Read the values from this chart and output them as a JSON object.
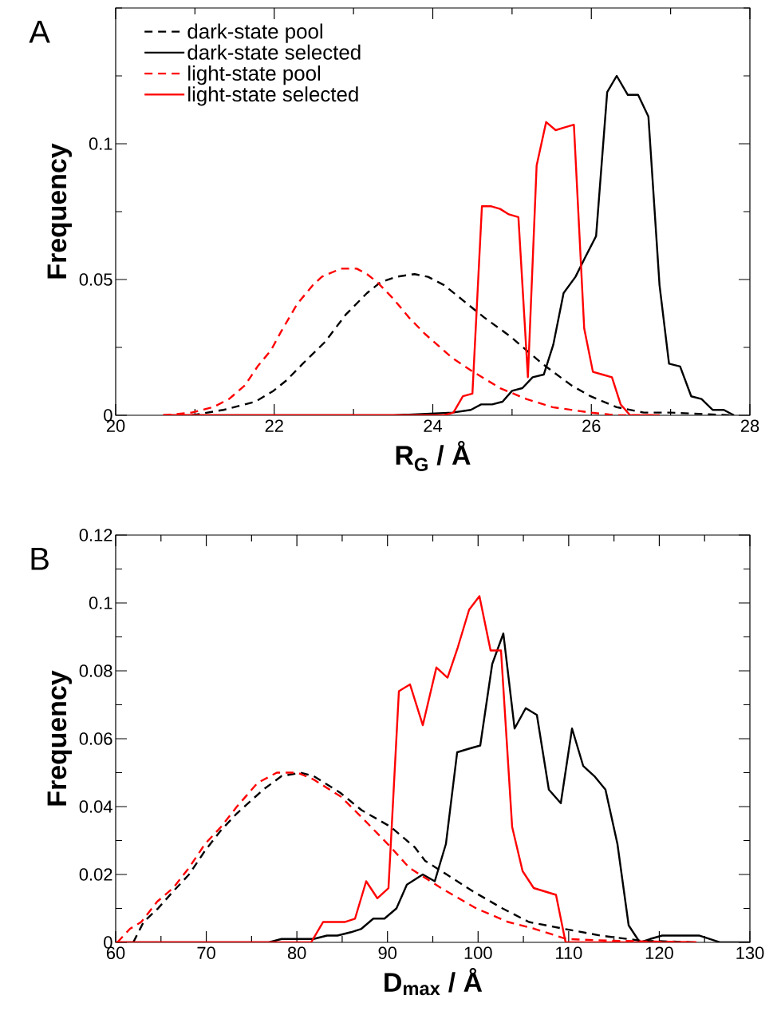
{
  "chart_data": [
    {
      "type": "line",
      "title": "A",
      "xlabel": "**R$_{G}$ / Å**",
      "ylabel": "**Frequency**",
      "xlim": [
        20,
        28
      ],
      "xticks": [
        20,
        {
          "value": 21,
          "label": null
        },
        22,
        {
          "value": 23,
          "label": null
        },
        24,
        {
          "value": 25,
          "label": null
        },
        26,
        {
          "value": 27,
          "label": null
        },
        28
      ],
      "ylim": [
        0,
        0.15
      ],
      "yticks": [
        0,
        {
          "value": 0.025,
          "label": null
        },
        0.05,
        {
          "value": 0.075,
          "label": null
        },
        0.1,
        {
          "value": 0.125,
          "label": null
        },
        {
          "value": 0.15,
          "label": null
        }
      ],
      "legend": "top left",
      "series": [
        {
          "name": "dark-state pool",
          "color": "#000000",
          "line_style": "dashed",
          "x": [
            20.96,
            21.36,
            21.76,
            21.99,
            22.16,
            22.36,
            22.64,
            22.9,
            23.17,
            23.34,
            23.54,
            23.77,
            23.94,
            24.14,
            24.31,
            24.65,
            24.98,
            25.38,
            25.75,
            25.99,
            26.32,
            26.66,
            26.99,
            27.77
          ],
          "values": [
            0,
            0.002,
            0.005,
            0.009,
            0.013,
            0.019,
            0.027,
            0.037,
            0.045,
            0.049,
            0.051,
            0.052,
            0.051,
            0.048,
            0.044,
            0.036,
            0.029,
            0.019,
            0.011,
            0.007,
            0.003,
            0.001,
            0.001,
            0
          ]
        },
        {
          "name": "dark-state selected",
          "color": "#000000",
          "line_style": "solid",
          "x": [
            20.6,
            23.5,
            23.97,
            24.25,
            24.48,
            24.61,
            24.75,
            24.88,
            25.0,
            25.13,
            25.26,
            25.4,
            25.52,
            25.65,
            25.8,
            25.92,
            26.06,
            26.2,
            26.32,
            26.46,
            26.59,
            26.72,
            26.86,
            26.98,
            27.12,
            27.26,
            27.39,
            27.53,
            27.67,
            27.8
          ],
          "values": [
            0,
            0,
            0.0006,
            0.001,
            0.002,
            0.004,
            0.004,
            0.005,
            0.009,
            0.01,
            0.014,
            0.015,
            0.026,
            0.045,
            0.051,
            0.058,
            0.066,
            0.119,
            0.125,
            0.118,
            0.118,
            0.11,
            0.048,
            0.019,
            0.018,
            0.007,
            0.006,
            0.002,
            0.002,
            0
          ]
        },
        {
          "name": "light-state pool",
          "color": "#ff0000",
          "line_style": "dashed",
          "x": [
            20.6,
            20.96,
            21.23,
            21.43,
            21.63,
            21.79,
            21.96,
            22.09,
            22.29,
            22.49,
            22.6,
            22.84,
            23.04,
            23.17,
            23.3,
            23.5,
            23.7,
            23.9,
            24.25,
            24.51,
            24.85,
            25.18,
            25.51,
            25.99,
            26.32,
            26.86
          ],
          "values": [
            0,
            0.001,
            0.003,
            0.006,
            0.011,
            0.018,
            0.024,
            0.031,
            0.041,
            0.048,
            0.051,
            0.054,
            0.054,
            0.052,
            0.049,
            0.043,
            0.036,
            0.03,
            0.021,
            0.016,
            0.01,
            0.006,
            0.003,
            0.001,
            0,
            0
          ]
        },
        {
          "name": "light-state selected",
          "color": "#ff0000",
          "line_style": "solid",
          "x": [
            20.6,
            23.97,
            24.14,
            24.26,
            24.38,
            24.5,
            24.62,
            24.73,
            24.85,
            24.96,
            25.08,
            25.2,
            25.31,
            25.43,
            25.55,
            25.66,
            25.78,
            25.91,
            26.02,
            26.14,
            26.26,
            26.37,
            26.49,
            26.86
          ],
          "values": [
            0,
            0,
            0,
            0.001,
            0.007,
            0.008,
            0.077,
            0.077,
            0.076,
            0.074,
            0.073,
            0.014,
            0.092,
            0.108,
            0.105,
            0.106,
            0.107,
            0.032,
            0.016,
            0.015,
            0.014,
            0.004,
            0,
            0
          ]
        }
      ]
    },
    {
      "type": "line",
      "title": "B",
      "xlabel": "**D$_{max}$ / Å**",
      "ylabel": "**Frequency**",
      "xlim": [
        60,
        130
      ],
      "xticks": [
        60,
        {
          "value": 65,
          "label": null
        },
        70,
        {
          "value": 75,
          "label": null
        },
        80,
        {
          "value": 85,
          "label": null
        },
        90,
        {
          "value": 95,
          "label": null
        },
        100,
        {
          "value": 105,
          "label": null
        },
        110,
        {
          "value": 115,
          "label": null
        },
        120,
        {
          "value": 125,
          "label": null
        },
        130
      ],
      "ylim": [
        0,
        0.12
      ],
      "yticks": [
        0,
        {
          "value": 0.01,
          "label": null
        },
        0.02,
        {
          "value": 0.03,
          "label": null
        },
        0.04,
        {
          "value": 0.05,
          "label": null
        },
        0.06,
        {
          "value": 0.07,
          "label": null
        },
        0.08,
        {
          "value": 0.09,
          "label": null
        },
        0.1,
        {
          "value": 0.11,
          "label": null
        },
        0.12
      ],
      "series": [
        {
          "color": "#000000",
          "line_style": "dashed",
          "x": [
            61.94,
            63.08,
            64.67,
            66.34,
            68.1,
            69.86,
            71.62,
            73.38,
            76.29,
            78.31,
            80.43,
            81.84,
            84.83,
            87.12,
            90.38,
            93.02,
            94.16,
            96.54,
            99.45,
            102.7,
            105.61,
            109.48,
            113.53,
            117.94,
            124.45
          ],
          "values": [
            0,
            0.006,
            0.01,
            0.015,
            0.02,
            0.027,
            0.033,
            0.038,
            0.045,
            0.049,
            0.05,
            0.049,
            0.044,
            0.039,
            0.034,
            0.028,
            0.024,
            0.02,
            0.015,
            0.01,
            0.006,
            0.004,
            0.002,
            0.0005,
            0
          ]
        },
        {
          "color": "#000000",
          "line_style": "solid",
          "x": [
            60,
            76.91,
            78.31,
            79.81,
            81.84,
            83.33,
            84.48,
            85.97,
            87.12,
            88.44,
            89.67,
            90.99,
            92.14,
            93.9,
            95.22,
            96.45,
            97.69,
            98.92,
            100.24,
            101.56,
            102.79,
            104.03,
            105.26,
            106.49,
            107.81,
            109.13,
            110.37,
            111.6,
            112.83,
            114.06,
            115.38,
            116.62,
            117.85,
            118.99,
            120.32,
            124.45,
            125.6,
            126.74,
            130
          ],
          "values": [
            0,
            0,
            0.001,
            0.001,
            0.001,
            0.002,
            0.002,
            0.003,
            0.004,
            0.007,
            0.007,
            0.01,
            0.017,
            0.02,
            0.018,
            0.029,
            0.056,
            0.057,
            0.058,
            0.082,
            0.091,
            0.063,
            0.069,
            0.067,
            0.045,
            0.041,
            0.063,
            0.052,
            0.049,
            0.045,
            0.029,
            0.005,
            0,
            0.001,
            0.002,
            0.002,
            0.001,
            0,
            0
          ]
        },
        {
          "color": "#ff0000",
          "line_style": "dashed",
          "x": [
            60.18,
            61.58,
            62.82,
            64.58,
            66.34,
            68.1,
            69.86,
            71.62,
            73.38,
            75.67,
            77.79,
            80.08,
            81.84,
            84.83,
            87.47,
            90.38,
            92.4,
            94.16,
            95.92,
            99.8,
            103.32,
            106.23,
            109.75,
            114.42,
            124.1
          ],
          "values": [
            0,
            0.004,
            0.006,
            0.012,
            0.016,
            0.022,
            0.029,
            0.034,
            0.04,
            0.047,
            0.05,
            0.05,
            0.048,
            0.043,
            0.036,
            0.028,
            0.022,
            0.019,
            0.016,
            0.01,
            0.006,
            0.004,
            0.001,
            0.0005,
            0
          ]
        },
        {
          "color": "#ff0000",
          "line_style": "solid",
          "x": [
            60,
            81.57,
            82.89,
            85.27,
            86.42,
            87.65,
            88.88,
            90.11,
            91.26,
            92.49,
            93.9,
            95.4,
            96.63,
            97.77,
            99.01,
            100.15,
            101.38,
            102.53,
            103.76,
            104.91,
            106.14,
            108.6,
            109.66,
            124.1
          ],
          "values": [
            0,
            0,
            0.006,
            0.006,
            0.007,
            0.018,
            0.013,
            0.016,
            0.074,
            0.076,
            0.064,
            0.081,
            0.078,
            0.087,
            0.098,
            0.102,
            0.086,
            0.086,
            0.034,
            0.021,
            0.016,
            0.014,
            0,
            0
          ]
        }
      ]
    }
  ]
}
